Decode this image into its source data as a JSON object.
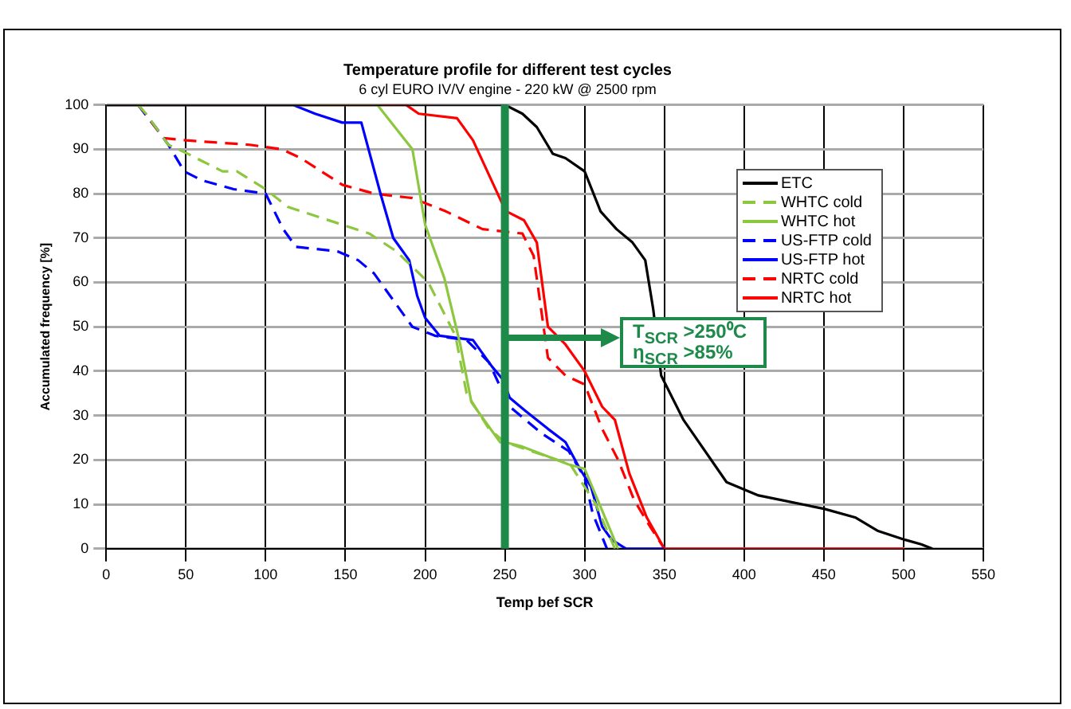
{
  "chart_data": {
    "type": "line",
    "title": "Temperature profile for different test cycles",
    "subtitle": "6 cyl EURO IV/V engine - 220 kW @ 2500 rpm",
    "xlabel": "Temp bef SCR",
    "ylabel": "Accumulated frequency [%]",
    "xlim": [
      0,
      550
    ],
    "xticks": [
      0,
      50,
      100,
      150,
      200,
      250,
      300,
      350,
      400,
      450,
      500,
      550
    ],
    "ylim": [
      0,
      100
    ],
    "yticks": [
      0,
      10,
      20,
      30,
      40,
      50,
      60,
      70,
      80,
      90,
      100
    ],
    "grid": true,
    "legend": "top right",
    "marker": "none",
    "series": [
      {
        "name": "ETC",
        "color": "#000000",
        "line_style": "solid",
        "x": [
          0,
          245,
          250,
          261,
          270,
          280,
          288,
          300,
          310,
          320,
          330,
          338,
          343,
          348,
          362,
          389,
          409,
          450,
          470,
          484,
          501,
          511,
          518
        ],
        "values": [
          100,
          100,
          100,
          98,
          95,
          89,
          88,
          85,
          76,
          72,
          69,
          65,
          54,
          39,
          29,
          15,
          12,
          9,
          7,
          4,
          2,
          1,
          0
        ]
      },
      {
        "name": "WHTC cold",
        "color": "#8dc63f",
        "line_style": "dashed",
        "x": [
          20,
          25,
          39,
          51,
          73,
          82,
          100,
          114,
          148,
          165,
          182,
          202,
          219,
          226,
          240,
          250,
          283,
          291,
          307,
          319
        ],
        "values": [
          100,
          98,
          91,
          89,
          85,
          85,
          81,
          77,
          73,
          71,
          67,
          60,
          48,
          35,
          27,
          24,
          20,
          19,
          10,
          0
        ]
      },
      {
        "name": "WHTC hot",
        "color": "#8dc63f",
        "line_style": "solid",
        "x": [
          0,
          170,
          192,
          200,
          212,
          222,
          229,
          247,
          250,
          261,
          290,
          300,
          307,
          321
        ],
        "values": [
          100,
          100,
          90,
          73,
          61,
          46,
          33,
          24,
          24,
          23,
          19,
          18,
          12,
          0
        ]
      },
      {
        "name": "US-FTP cold",
        "color": "#0000ff",
        "line_style": "dashed",
        "x": [
          20,
          31,
          39,
          49,
          60,
          80,
          100,
          111,
          119,
          145,
          158,
          168,
          182,
          192,
          206,
          226,
          240,
          249,
          253,
          273,
          290,
          300,
          305,
          314
        ],
        "values": [
          100,
          95,
          91,
          85,
          83,
          81,
          80,
          72,
          68,
          67,
          65,
          62,
          55,
          50,
          48,
          47,
          42,
          35,
          32,
          26,
          22,
          16,
          8,
          0
        ]
      },
      {
        "name": "US-FTP hot",
        "color": "#0000ff",
        "line_style": "solid",
        "x": [
          0,
          117,
          131,
          148,
          160,
          172,
          180,
          190,
          195,
          200,
          209,
          230,
          242,
          249,
          253,
          263,
          277,
          288,
          297,
          304,
          311,
          317,
          326,
          350
        ],
        "values": [
          100,
          100,
          98,
          96,
          96,
          80,
          70,
          65,
          57,
          52,
          48,
          47,
          41,
          38,
          34,
          31,
          27,
          24,
          18,
          14,
          5,
          2,
          0,
          0
        ]
      },
      {
        "name": "NRTC cold",
        "color": "#ff0000",
        "line_style": "dashed",
        "x": [
          20,
          36,
          50,
          90,
          110,
          122,
          148,
          168,
          192,
          213,
          236,
          261,
          268,
          277,
          288,
          300,
          311,
          321,
          331,
          341,
          350
        ],
        "values": [
          100,
          92.5,
          92,
          91,
          90,
          88,
          82,
          80,
          79,
          76,
          72,
          71,
          66,
          43,
          39,
          37,
          27,
          20,
          11,
          5,
          0
        ]
      },
      {
        "name": "NRTC hot",
        "color": "#ff0000",
        "line_style": "solid",
        "x": [
          0,
          188,
          196,
          220,
          230,
          248,
          251,
          262,
          270,
          277,
          288,
          300,
          311,
          319,
          328,
          339,
          350,
          500
        ],
        "values": [
          100,
          100,
          98,
          97,
          92,
          78,
          76,
          74,
          69,
          50,
          46,
          40,
          32,
          29,
          17,
          7,
          0,
          0
        ]
      }
    ],
    "ref_lines": [
      {
        "axis": "x",
        "value": 250,
        "color": "#1e8a4a",
        "line_style": "solid"
      }
    ],
    "annotations": [
      "T$_{SCR}$ >250⁰C",
      "η$_{SCR}$ >85%"
    ]
  }
}
